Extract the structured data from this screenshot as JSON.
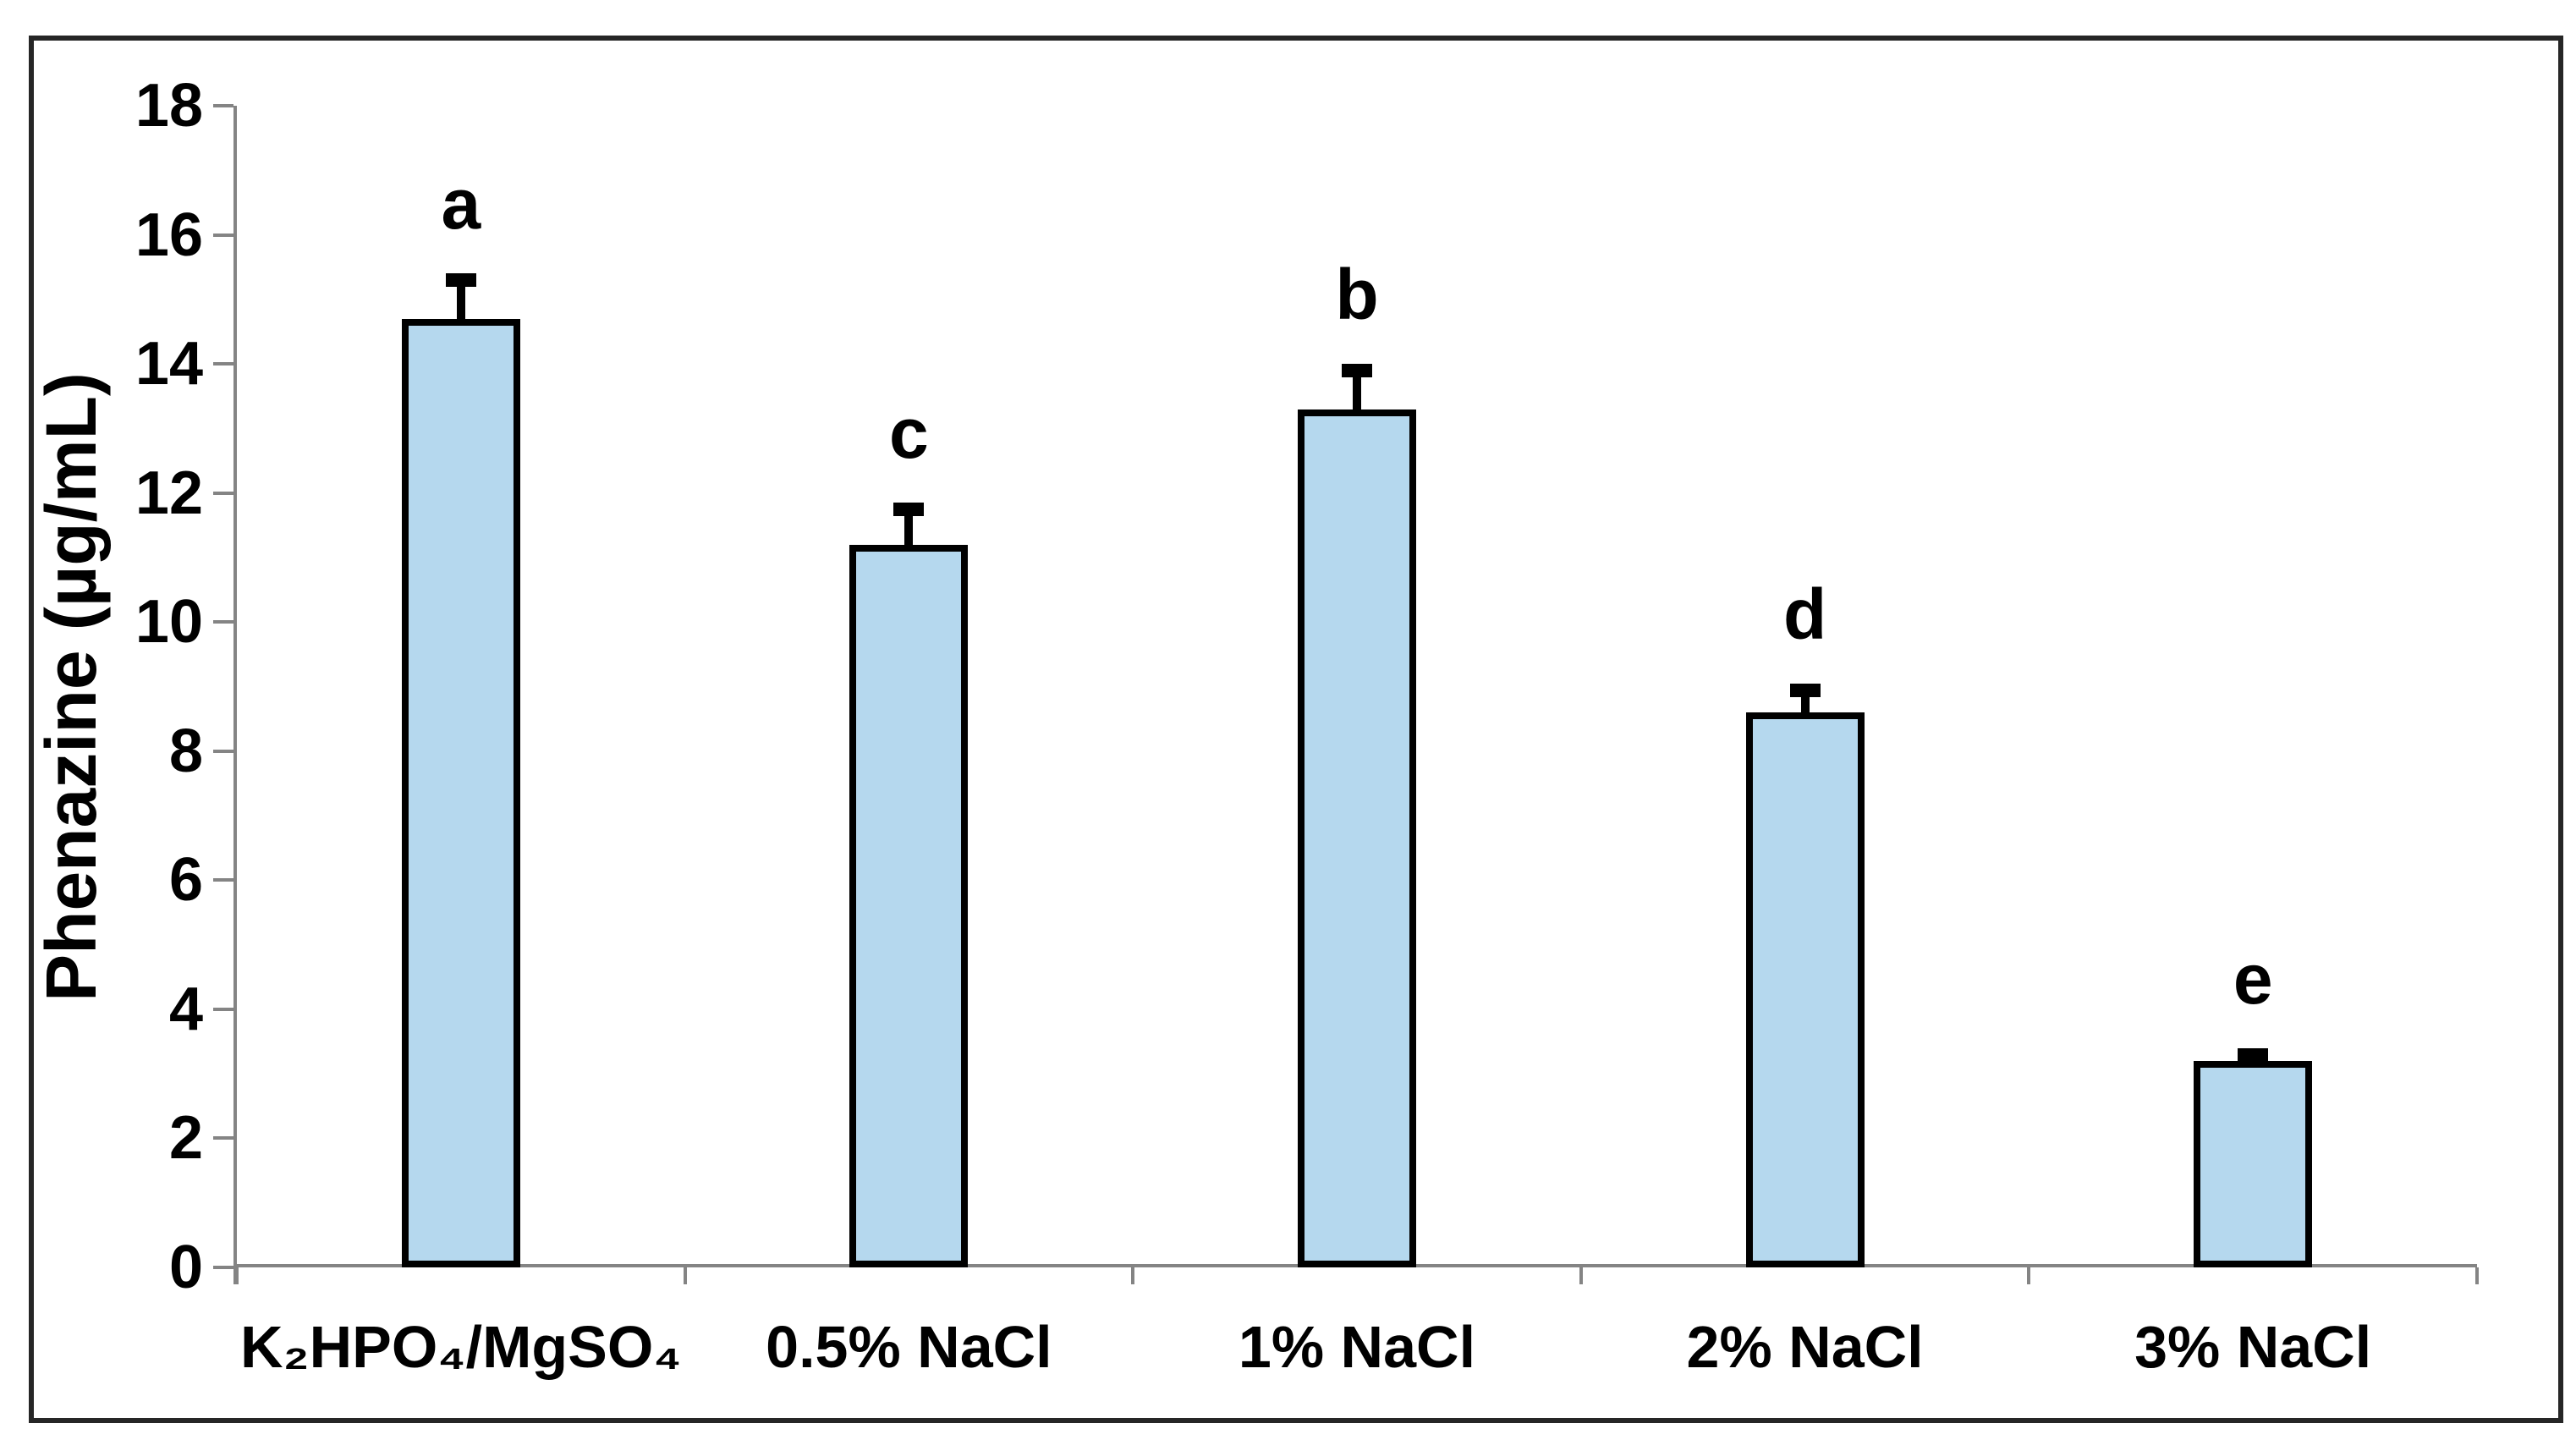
{
  "figure": {
    "background": "#FFFFFF",
    "border_color": "#262626"
  },
  "chart_data": {
    "type": "bar",
    "title": "",
    "xlabel": "",
    "ylabel": "Phenazine (µg/mL)",
    "ylim": [
      0,
      18
    ],
    "ytick_step": 2,
    "yticks": [
      18,
      16,
      14,
      12,
      10,
      8,
      6,
      4,
      2,
      0
    ],
    "categories": [
      "K₂HPO₄/MgSO₄",
      "0.5% NaCl",
      "1% NaCl",
      "2% NaCl",
      "3% NaCl"
    ],
    "values": [
      14.7,
      11.2,
      13.3,
      8.6,
      3.2
    ],
    "errors_plus": [
      0.7,
      0.65,
      0.7,
      0.45,
      0.2
    ],
    "significance_letters": [
      "a",
      "c",
      "b",
      "d",
      "e"
    ],
    "grid": false,
    "legend": "none",
    "colors": {
      "bar_fill": "#B5D8EE",
      "bar_border": "#000000",
      "error_bar": "#000000",
      "axis_line": "#848484",
      "text": "#000000"
    }
  }
}
